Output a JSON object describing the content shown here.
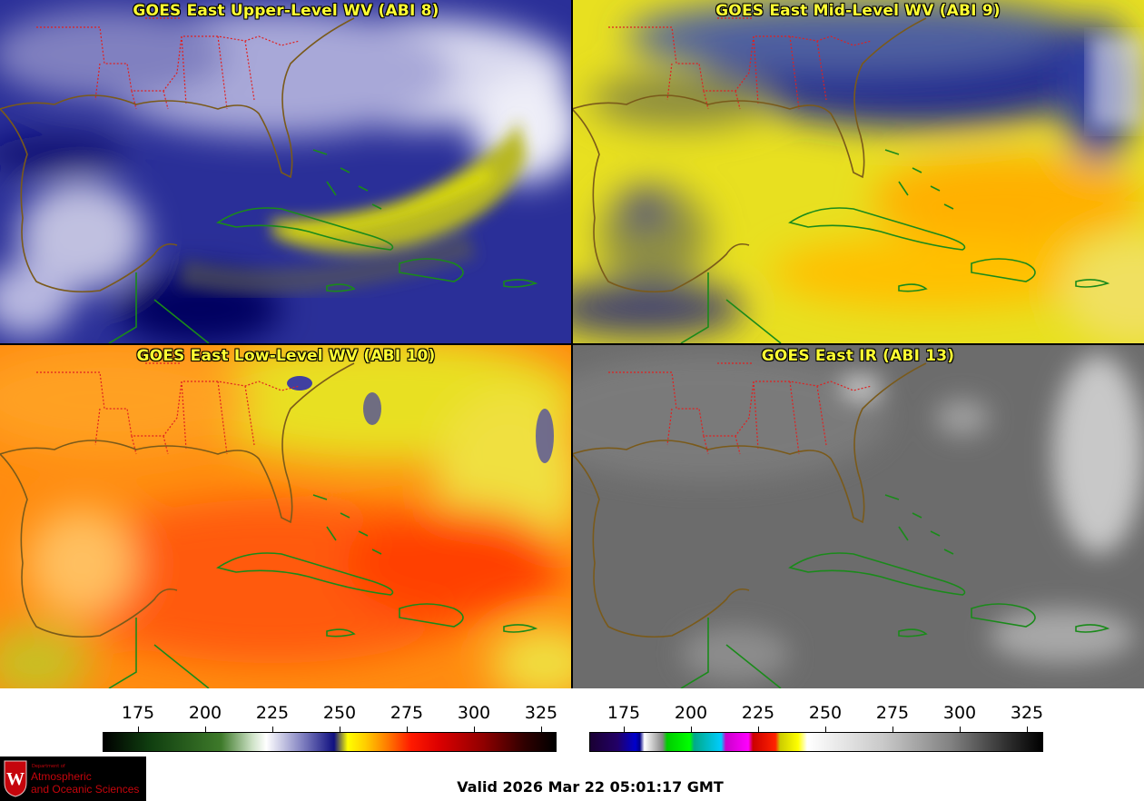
{
  "panels": [
    {
      "title": "GOES East Upper-Level WV (ABI 8)",
      "channel": "ABI 8",
      "colormap": "wv"
    },
    {
      "title": "GOES East Mid-Level WV (ABI 9)",
      "channel": "ABI 9",
      "colormap": "wv"
    },
    {
      "title": "GOES East Low-Level WV (ABI 10)",
      "channel": "ABI 10",
      "colormap": "wv"
    },
    {
      "title": "GOES East IR (ABI 13)",
      "channel": "ABI 13",
      "colormap": "ir"
    }
  ],
  "colorbars": {
    "wv": {
      "ticks": [
        "175",
        "200",
        "225",
        "250",
        "275",
        "300",
        "325"
      ]
    },
    "ir": {
      "ticks": [
        "175",
        "200",
        "225",
        "250",
        "275",
        "300",
        "325"
      ]
    }
  },
  "logo": {
    "line1": "Department of",
    "line2": "Atmospheric",
    "line3": "and Oceanic Sciences",
    "seal_letter": "W"
  },
  "valid_time": "Valid 2026 Mar 22 05:01:17 GMT",
  "colors": {
    "title_text": "#ffff33",
    "state_lines": "#e02020",
    "coastline": "#7a5a1a",
    "island_lines": "#1a8a1a"
  }
}
